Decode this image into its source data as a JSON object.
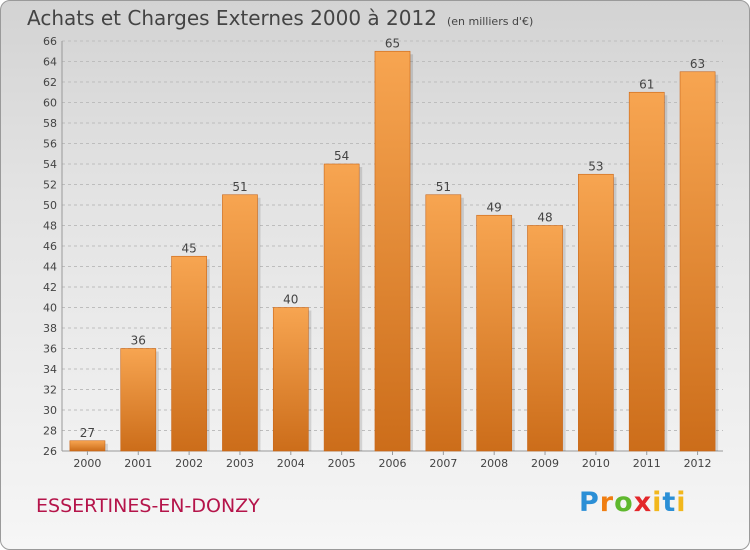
{
  "header": {
    "title": "Achats et Charges Externes 2000 à 2012",
    "subtitle": "(en milliers d'€)"
  },
  "footer": {
    "commune": "ESSERTINES-EN-DONZY",
    "logo_text": "Proxiti"
  },
  "colors": {
    "bar_light": "#f7a551",
    "bar_dark": "#cc6d1a",
    "grid": "#bdbdbd",
    "commune_text": "#b5144a"
  },
  "chart_data": {
    "type": "bar",
    "title": "Achats et Charges Externes 2000 à 2012",
    "subtitle": "(en milliers d'€)",
    "categories": [
      "2000",
      "2001",
      "2002",
      "2003",
      "2004",
      "2005",
      "2006",
      "2007",
      "2008",
      "2009",
      "2010",
      "2011",
      "2012"
    ],
    "values": [
      27,
      36,
      45,
      51,
      40,
      54,
      65,
      51,
      49,
      48,
      53,
      61,
      63
    ],
    "ylim": [
      26,
      66
    ],
    "ytick_step": 2,
    "grid": true,
    "legend": "none"
  }
}
